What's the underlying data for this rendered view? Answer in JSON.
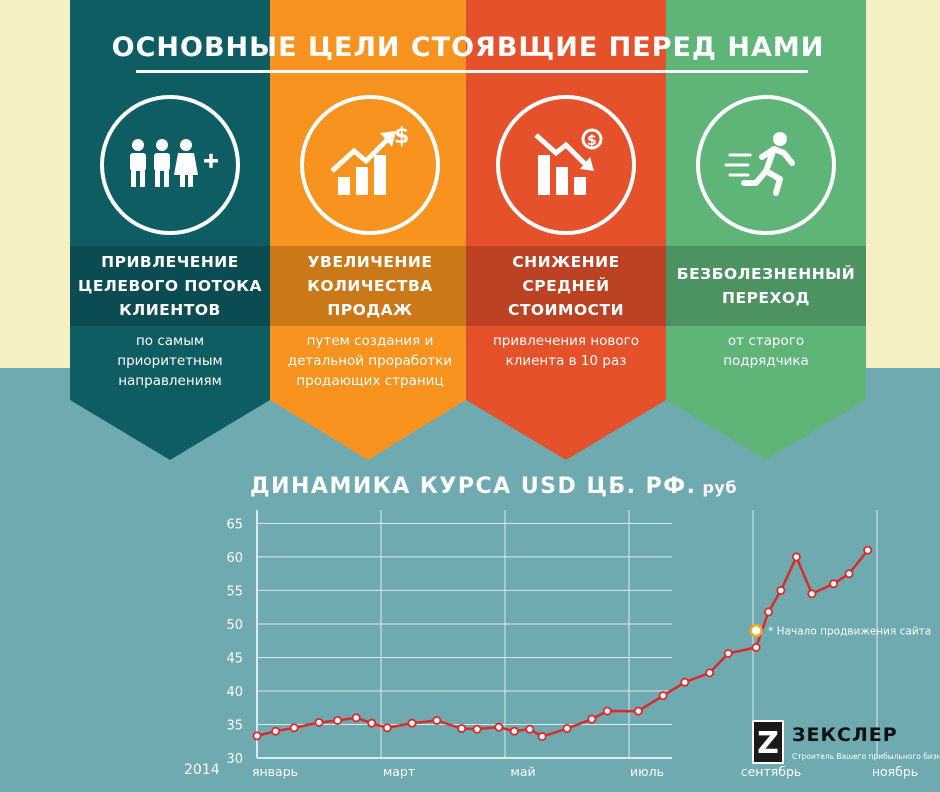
{
  "header": {
    "title": "ОСНОВНЫЕ ЦЕЛИ СТОЯВЩИЕ ПЕРЕД НАМИ"
  },
  "goals": [
    {
      "title": "ПРИВЛЕЧЕНИЕ\nЦЕЛЕВОГО ПОТОКА\nКЛИЕНТОВ",
      "text": "по самым\nприоритетным\nнаправлениям",
      "icon": "people-plus-icon",
      "color": "#0d5d63"
    },
    {
      "title": "УВЕЛИЧЕНИЕ\nКОЛИЧЕСТВА\nПРОДАЖ",
      "text": "путем создания и\nдетальной проработки\nпродающих страниц",
      "icon": "growth-chart-dollar-icon",
      "color": "#f7931e"
    },
    {
      "title": "СНИЖЕНИЕ\nСРЕДНЕЙ\nСТОИМОСТИ",
      "text": "привлечения нового\nклиента в 10 раз",
      "icon": "decline-chart-dollar-icon",
      "color": "#e4512b"
    },
    {
      "title": "БЕЗБОЛЕЗНЕННЫЙ\nПЕРЕХОД",
      "text": "от старого\nподрядчика",
      "icon": "running-man-icon",
      "color": "#5fb477"
    }
  ],
  "chart_data": {
    "type": "line",
    "title": "ДИНАМИКА КУРСА USD ЦБ. РФ.",
    "unit": "руб",
    "year_label": "2014",
    "ylim": [
      30,
      67
    ],
    "yticks": [
      30,
      35,
      40,
      45,
      50,
      55,
      60,
      65
    ],
    "month_ticks": [
      {
        "label": "январь",
        "x": 0
      },
      {
        "label": "март",
        "x": 2
      },
      {
        "label": "май",
        "x": 4
      },
      {
        "label": "июль",
        "x": 6
      },
      {
        "label": "сентябрь",
        "x": 8
      },
      {
        "label": "ноябрь",
        "x": 10
      }
    ],
    "xlim": [
      0,
      11.5
    ],
    "series": [
      {
        "color": "#d92b2b",
        "points": [
          [
            0.0,
            33.3
          ],
          [
            0.3,
            34.0
          ],
          [
            0.6,
            34.5
          ],
          [
            1.0,
            35.3
          ],
          [
            1.3,
            35.6
          ],
          [
            1.6,
            36.0
          ],
          [
            1.85,
            35.2
          ],
          [
            2.1,
            34.5
          ],
          [
            2.5,
            35.2
          ],
          [
            2.9,
            35.6
          ],
          [
            3.3,
            34.4
          ],
          [
            3.55,
            34.3
          ],
          [
            3.9,
            34.6
          ],
          [
            4.15,
            34.0
          ],
          [
            4.4,
            34.3
          ],
          [
            4.6,
            33.2
          ],
          [
            5.0,
            34.4
          ],
          [
            5.4,
            35.8
          ],
          [
            5.65,
            37.0
          ],
          [
            6.15,
            37.0
          ],
          [
            6.55,
            39.3
          ],
          [
            6.9,
            41.3
          ],
          [
            7.3,
            42.7
          ],
          [
            7.6,
            45.6
          ],
          [
            8.05,
            46.5
          ],
          [
            8.25,
            51.8
          ],
          [
            8.45,
            55.0
          ],
          [
            8.7,
            60.0
          ],
          [
            8.95,
            54.5
          ],
          [
            9.3,
            56.0
          ],
          [
            9.55,
            57.5
          ],
          [
            9.85,
            61.0
          ]
        ]
      }
    ],
    "annotation": {
      "x": 8.05,
      "y": 49.0,
      "text": "* Начало продвижения сайта"
    }
  },
  "brand": {
    "name": "ЗЕКСЛЕР",
    "letter": "Z",
    "tagline": "Строитель Вашего прибыльного бизнеса"
  }
}
